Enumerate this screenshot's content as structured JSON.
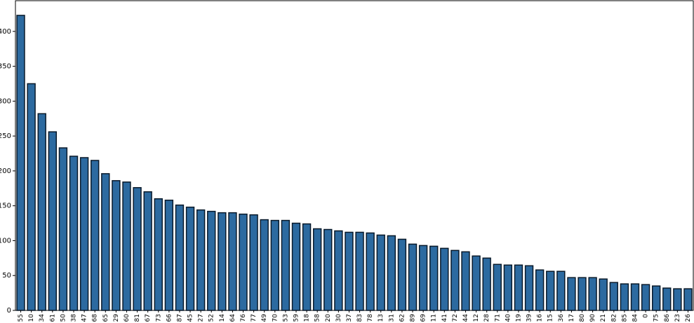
{
  "chart_data": {
    "type": "bar",
    "categories": [
      "55",
      "10",
      "34",
      "61",
      "50",
      "38",
      "47",
      "68",
      "65",
      "29",
      "60",
      "81",
      "67",
      "73",
      "66",
      "87",
      "45",
      "27",
      "52",
      "14",
      "64",
      "76",
      "77",
      "49",
      "70",
      "53",
      "59",
      "18",
      "58",
      "20",
      "30",
      "37",
      "83",
      "78",
      "13",
      "31",
      "62",
      "89",
      "69",
      "11",
      "41",
      "72",
      "44",
      "12",
      "28",
      "71",
      "40",
      "19",
      "39",
      "16",
      "15",
      "36",
      "17",
      "80",
      "90",
      "21",
      "82",
      "85",
      "84",
      "0",
      "75",
      "86",
      "23",
      "26"
    ],
    "values": [
      423,
      325,
      282,
      256,
      233,
      221,
      219,
      215,
      196,
      186,
      184,
      176,
      170,
      160,
      158,
      151,
      148,
      144,
      142,
      140,
      140,
      138,
      137,
      130,
      129,
      129,
      125,
      124,
      117,
      116,
      114,
      112,
      112,
      111,
      108,
      107,
      102,
      95,
      93,
      92,
      89,
      86,
      84,
      78,
      75,
      66,
      65,
      65,
      64,
      58,
      56,
      56,
      47,
      47,
      47,
      45,
      40,
      38,
      38,
      37,
      35,
      32,
      31,
      31
    ],
    "color": "#2c6aa0",
    "ylim": [
      0,
      444
    ],
    "yticks": [
      0,
      50,
      100,
      150,
      200,
      250,
      300,
      350,
      400
    ]
  }
}
